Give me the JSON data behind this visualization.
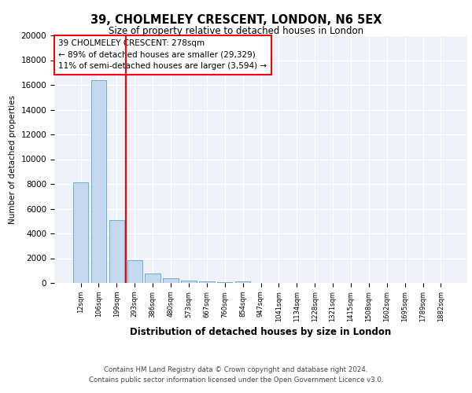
{
  "title": "39, CHOLMELEY CRESCENT, LONDON, N6 5EX",
  "subtitle": "Size of property relative to detached houses in London",
  "xlabel": "Distribution of detached houses by size in London",
  "ylabel": "Number of detached properties",
  "bar_labels": [
    "12sqm",
    "106sqm",
    "199sqm",
    "293sqm",
    "386sqm",
    "480sqm",
    "573sqm",
    "667sqm",
    "760sqm",
    "854sqm",
    "947sqm",
    "1041sqm",
    "1134sqm",
    "1228sqm",
    "1321sqm",
    "1415sqm",
    "1508sqm",
    "1602sqm",
    "1695sqm",
    "1789sqm",
    "1882sqm"
  ],
  "bar_values": [
    8100,
    16400,
    5100,
    1850,
    750,
    350,
    180,
    110,
    70,
    140,
    0,
    0,
    0,
    0,
    0,
    0,
    0,
    0,
    0,
    0,
    0
  ],
  "bar_color": "#c5d8ef",
  "bar_edge_color": "#6aaed6",
  "vline_x": 2.5,
  "vline_color": "red",
  "annotation_text": "39 CHOLMELEY CRESCENT: 278sqm\n← 89% of detached houses are smaller (29,329)\n11% of semi-detached houses are larger (3,594) →",
  "annotation_box_color": "white",
  "annotation_box_edge": "red",
  "ylim": [
    0,
    20000
  ],
  "yticks": [
    0,
    2000,
    4000,
    6000,
    8000,
    10000,
    12000,
    14000,
    16000,
    18000,
    20000
  ],
  "footer": "Contains HM Land Registry data © Crown copyright and database right 2024.\nContains public sector information licensed under the Open Government Licence v3.0.",
  "bg_color": "white",
  "plot_bg_color": "#eef2f8"
}
